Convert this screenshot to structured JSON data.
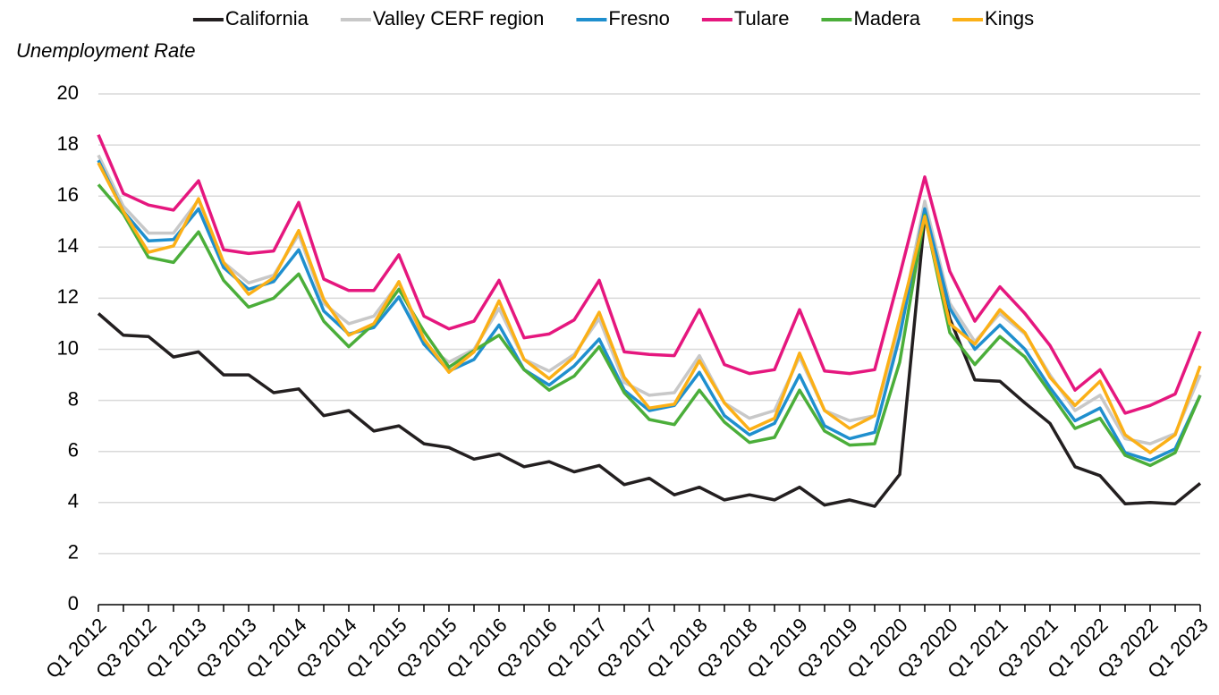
{
  "chart_data": {
    "type": "line",
    "y_label": "Unemployment Rate",
    "categories": [
      "Q1 2012",
      null,
      "Q3 2012",
      null,
      "Q1 2013",
      null,
      "Q3 2013",
      null,
      "Q1 2014",
      null,
      "Q3 2014",
      null,
      "Q1 2015",
      null,
      "Q3 2015",
      null,
      "Q1 2016",
      null,
      "Q3 2016",
      null,
      "Q1 2017",
      null,
      "Q3 2017",
      null,
      "Q1 2018",
      null,
      "Q3 2018",
      null,
      "Q1 2019",
      null,
      "Q3 2019",
      null,
      "Q1 2020",
      null,
      "Q3 2020",
      null,
      "Q1 2021",
      null,
      "Q3 2021",
      null,
      "Q1 2022",
      null,
      "Q3 2022",
      null,
      "Q1 2023"
    ],
    "series": [
      {
        "name": "California",
        "color": "#231f20",
        "values": [
          11.4,
          10.55,
          10.5,
          9.7,
          9.9,
          9.0,
          9.0,
          8.3,
          8.45,
          7.4,
          7.6,
          6.8,
          7.0,
          6.3,
          6.15,
          5.7,
          5.9,
          5.4,
          5.6,
          5.2,
          5.45,
          4.7,
          4.95,
          4.3,
          4.6,
          4.1,
          4.3,
          4.1,
          4.6,
          3.9,
          4.1,
          3.85,
          5.1,
          15.2,
          11.2,
          8.8,
          8.75,
          7.9,
          7.1,
          5.4,
          5.05,
          3.95,
          4.0,
          3.95,
          4.75
        ]
      },
      {
        "name": "Valley CERF region",
        "color": "#c8c8c8",
        "values": [
          17.6,
          15.6,
          14.55,
          14.55,
          15.85,
          13.4,
          12.6,
          12.9,
          14.5,
          11.8,
          11.0,
          11.3,
          12.6,
          10.2,
          9.5,
          10.0,
          11.6,
          9.6,
          9.15,
          9.8,
          11.2,
          8.7,
          8.2,
          8.3,
          9.75,
          7.9,
          7.3,
          7.6,
          9.7,
          7.6,
          7.2,
          7.4,
          10.8,
          15.8,
          11.8,
          10.3,
          11.4,
          10.6,
          9.0,
          7.6,
          8.2,
          6.5,
          6.3,
          6.7,
          9.0
        ]
      },
      {
        "name": "Fresno",
        "color": "#1f8fce",
        "values": [
          17.4,
          15.4,
          14.25,
          14.3,
          15.5,
          13.2,
          12.35,
          12.65,
          13.9,
          11.5,
          10.6,
          10.85,
          12.05,
          10.2,
          9.15,
          9.6,
          10.95,
          9.2,
          8.6,
          9.35,
          10.4,
          8.4,
          7.6,
          7.8,
          9.1,
          7.4,
          6.65,
          7.1,
          9.0,
          7.0,
          6.5,
          6.75,
          10.5,
          15.5,
          11.6,
          10.0,
          10.95,
          10.0,
          8.5,
          7.2,
          7.7,
          5.95,
          5.65,
          6.1,
          8.2
        ]
      },
      {
        "name": "Tulare",
        "color": "#e5177e",
        "values": [
          18.4,
          16.1,
          15.65,
          15.45,
          16.6,
          13.9,
          13.75,
          13.85,
          15.75,
          12.75,
          12.3,
          12.3,
          13.7,
          11.3,
          10.8,
          11.1,
          12.7,
          10.45,
          10.6,
          11.15,
          12.7,
          9.9,
          9.8,
          9.75,
          11.55,
          9.4,
          9.05,
          9.2,
          11.55,
          9.15,
          9.05,
          9.2,
          12.9,
          16.75,
          13.05,
          11.1,
          12.45,
          11.4,
          10.15,
          8.4,
          9.2,
          7.5,
          7.8,
          8.25,
          10.7
        ]
      },
      {
        "name": "Madera",
        "color": "#4bae3a",
        "values": [
          16.45,
          15.3,
          13.6,
          13.4,
          14.6,
          12.7,
          11.65,
          12.0,
          12.95,
          11.1,
          10.1,
          11.0,
          12.35,
          10.7,
          9.3,
          9.95,
          10.55,
          9.2,
          8.4,
          8.95,
          10.1,
          8.3,
          7.25,
          7.05,
          8.4,
          7.15,
          6.35,
          6.55,
          8.4,
          6.8,
          6.25,
          6.3,
          9.5,
          15.25,
          10.65,
          9.4,
          10.5,
          9.7,
          8.3,
          6.9,
          7.3,
          5.85,
          5.45,
          5.95,
          8.2
        ]
      },
      {
        "name": "Kings",
        "color": "#fbb017",
        "values": [
          17.3,
          15.4,
          13.8,
          14.05,
          15.9,
          13.4,
          12.15,
          12.8,
          14.65,
          11.95,
          10.55,
          11.0,
          12.65,
          10.4,
          9.1,
          9.9,
          11.9,
          9.6,
          8.85,
          9.7,
          11.45,
          8.9,
          7.7,
          7.85,
          9.55,
          7.9,
          6.85,
          7.3,
          9.85,
          7.6,
          6.9,
          7.4,
          11.2,
          15.2,
          11.0,
          10.2,
          11.55,
          10.65,
          8.9,
          7.8,
          8.75,
          6.65,
          5.95,
          6.65,
          9.35
        ]
      }
    ],
    "ylim": [
      0,
      20
    ],
    "yticks": [
      0,
      2,
      4,
      6,
      8,
      10,
      12,
      14,
      16,
      18,
      20
    ],
    "grid": true,
    "legend": "top"
  }
}
